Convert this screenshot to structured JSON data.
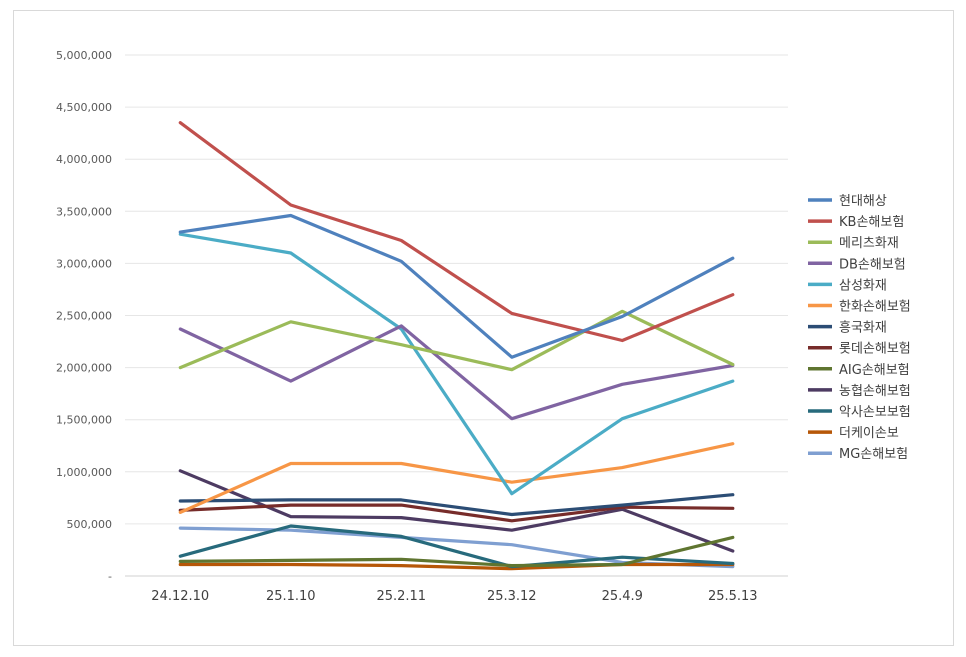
{
  "chart_data": {
    "type": "line",
    "title": "",
    "xlabel": "",
    "ylabel": "",
    "ylim": [
      0,
      5000000
    ],
    "y_ticks": [
      "-",
      "500,000",
      "1,000,000",
      "1,500,000",
      "2,000,000",
      "2,500,000",
      "3,000,000",
      "3,500,000",
      "4,000,000",
      "4,500,000",
      "5,000,000"
    ],
    "categories": [
      "24.12.10",
      "25.1.10",
      "25.2.11",
      "25.3.12",
      "25.4.9",
      "25.5.13"
    ],
    "grid": true,
    "legend_position": "right",
    "series": [
      {
        "name": "현대해상",
        "color": "#4f81bd",
        "values": [
          3300000,
          3460000,
          3020000,
          2100000,
          2490000,
          3050000
        ]
      },
      {
        "name": "KB손해보험",
        "color": "#c0504d",
        "values": [
          4350000,
          3560000,
          3220000,
          2520000,
          2260000,
          2700000
        ]
      },
      {
        "name": "메리츠화재",
        "color": "#9bbb59",
        "values": [
          2000000,
          2440000,
          2220000,
          1980000,
          2540000,
          2030000
        ]
      },
      {
        "name": "DB손해보험",
        "color": "#8064a2",
        "values": [
          2370000,
          1870000,
          2400000,
          1510000,
          1840000,
          2020000
        ]
      },
      {
        "name": "삼성화재",
        "color": "#4bacc6",
        "values": [
          3280000,
          3100000,
          2370000,
          790000,
          1510000,
          1870000
        ]
      },
      {
        "name": "한화손해보험",
        "color": "#f79646",
        "values": [
          610000,
          1080000,
          1080000,
          900000,
          1040000,
          1270000
        ]
      },
      {
        "name": "흥국화재",
        "color": "#2c4d75",
        "values": [
          720000,
          730000,
          730000,
          590000,
          680000,
          780000
        ]
      },
      {
        "name": "롯데손해보험",
        "color": "#772c2a",
        "values": [
          630000,
          680000,
          680000,
          530000,
          660000,
          650000
        ]
      },
      {
        "name": "AIG손해보험",
        "color": "#5f7530",
        "values": [
          140000,
          150000,
          160000,
          100000,
          110000,
          370000
        ]
      },
      {
        "name": "농협손해보험",
        "color": "#4d3b62",
        "values": [
          1010000,
          570000,
          560000,
          440000,
          640000,
          240000
        ]
      },
      {
        "name": "악사손보보험",
        "color": "#276a7c",
        "values": [
          190000,
          480000,
          380000,
          90000,
          180000,
          120000
        ]
      },
      {
        "name": "더케이손보",
        "color": "#b65708",
        "values": [
          110000,
          110000,
          100000,
          70000,
          110000,
          110000
        ]
      },
      {
        "name": "MG손해보험",
        "color": "#7f9fd1",
        "values": [
          460000,
          440000,
          370000,
          300000,
          130000,
          90000
        ]
      }
    ]
  }
}
